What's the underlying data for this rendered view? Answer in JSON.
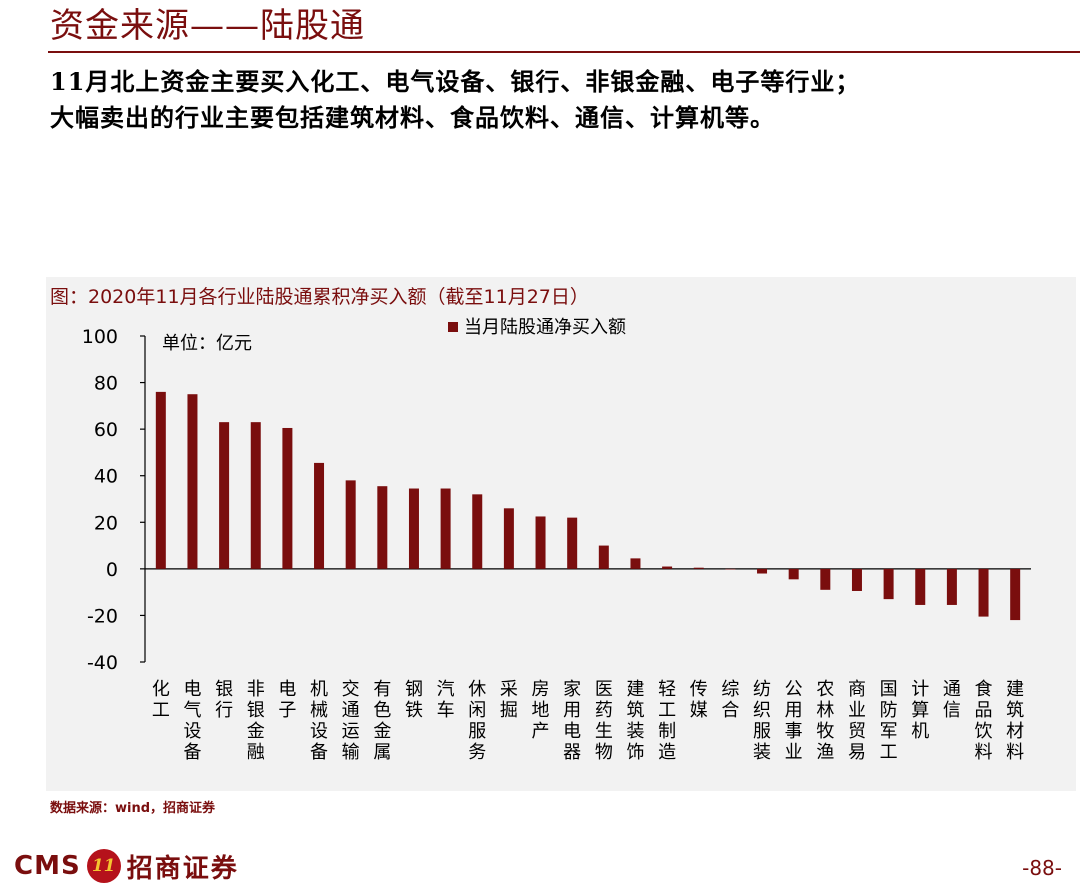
{
  "page": {
    "title": "资金来源——陆股通",
    "summary_line1": "11月北上资金主要买入化工、电气设备、银行、非银金融、电子等行业；",
    "summary_line2": "大幅卖出的行业主要包括建筑材料、食品饮料、通信、计算机等。",
    "source": "数据来源：wind，招商证券",
    "page_number": "-88-"
  },
  "brand": {
    "cms": "CMS",
    "badge": "11",
    "name_cn": "招商证券"
  },
  "colors": {
    "accent": "#7a0e0e",
    "bar": "#7a0e0e",
    "panel_bg": "#f2f2f2"
  },
  "chart_data": {
    "type": "bar",
    "title": "图：2020年11月各行业陆股通累积净买入额（截至11月27日）",
    "unit_label": "单位：亿元",
    "legend": "当月陆股通净买入额",
    "legend_position": "top-center",
    "ylim": [
      -40,
      100
    ],
    "yticks": [
      100,
      80,
      60,
      40,
      20,
      0,
      -20,
      -40
    ],
    "grid": false,
    "categories": [
      "化工",
      "电气设备",
      "银行",
      "非银金融",
      "电子",
      "机械设备",
      "交通运输",
      "有色金属",
      "钢铁",
      "汽车",
      "休闲服务",
      "采掘",
      "房地产",
      "家用电器",
      "医药生物",
      "建筑装饰",
      "轻工制造",
      "传媒",
      "综合",
      "纺织服装",
      "公用事业",
      "农林牧渔",
      "商业贸易",
      "国防军工",
      "计算机",
      "通信",
      "食品饮料",
      "建筑材料"
    ],
    "series": [
      {
        "name": "当月陆股通净买入额",
        "values": [
          76,
          75,
          63,
          63,
          60.5,
          45.5,
          38,
          35.5,
          34.5,
          34.5,
          32,
          26,
          22.5,
          22,
          10,
          4.5,
          1,
          0.5,
          0,
          -2,
          -4.5,
          -9,
          -9.5,
          -13,
          -15.5,
          -15.5,
          -20.5,
          -22
        ]
      }
    ]
  }
}
